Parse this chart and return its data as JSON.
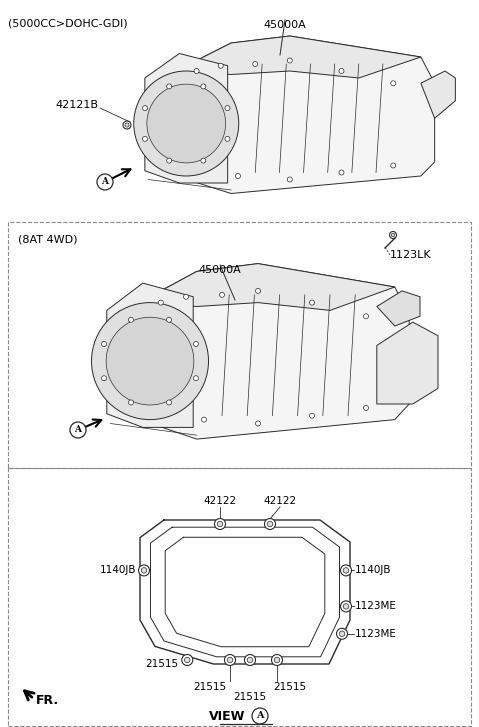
{
  "bg_color": "#ffffff",
  "line_color": "#2a2a2a",
  "text_color": "#000000",
  "fig_width": 4.79,
  "fig_height": 7.27,
  "dpi": 100,
  "section1": {
    "label": "(5000CC>DOHC-GDI)",
    "part45000A": "45000A",
    "part42121B": "42121B"
  },
  "section2": {
    "label": "(8AT 4WD)",
    "part45000A": "45000A",
    "part1123LK": "1123LK"
  },
  "section3": {
    "42122": "42122",
    "1140JB": "1140JB",
    "1123ME": "1123ME",
    "21515": "21515",
    "view_a": "VIEW",
    "fr": "FR."
  }
}
